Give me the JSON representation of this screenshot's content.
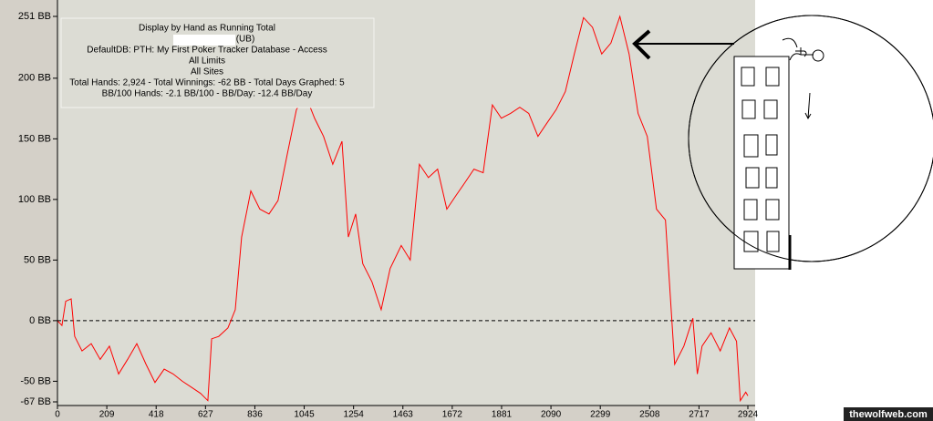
{
  "chart_data": {
    "type": "line",
    "info": [
      "Display by Hand as Running Total",
      "(UB)",
      "DefaultDB: PTH: My First Poker Tracker Database - Access",
      "All Limits",
      "All Sites",
      "Total Hands: 2,924 - Total Winnings: -62 BB - Total Days Graphed: 5",
      "BB/100 Hands: -2.1 BB/100 - BB/Day: -12.4 BB/Day"
    ],
    "x": [
      0,
      19,
      35,
      58,
      73,
      104,
      143,
      181,
      220,
      259,
      297,
      336,
      375,
      413,
      452,
      490,
      529,
      568,
      606,
      637,
      653,
      683,
      722,
      753,
      780,
      819,
      857,
      896,
      934,
      973,
      1012,
      1050,
      1089,
      1127,
      1166,
      1205,
      1232,
      1263,
      1293,
      1332,
      1371,
      1409,
      1456,
      1494,
      1533,
      1571,
      1610,
      1649,
      1687,
      1726,
      1764,
      1803,
      1842,
      1880,
      1919,
      1958,
      1996,
      2035,
      2073,
      2112,
      2151,
      2189,
      2228,
      2266,
      2305,
      2344,
      2382,
      2421,
      2459,
      2498,
      2537,
      2575,
      2614,
      2653,
      2691,
      2710,
      2730,
      2768,
      2807,
      2846,
      2876,
      2892,
      2915,
      2924
    ],
    "series": [
      {
        "color": "#ff0000",
        "values": [
          0,
          -4,
          16,
          18,
          -13,
          -25,
          -19,
          -32,
          -21,
          -44,
          -32,
          -19,
          -36,
          -51,
          -40,
          -44,
          -50,
          -55,
          -60,
          -66,
          -15,
          -13,
          -6,
          9,
          69,
          107,
          92,
          88,
          99,
          137,
          174,
          186,
          167,
          152,
          129,
          148,
          69,
          88,
          47,
          32,
          9,
          43,
          62,
          50,
          129,
          118,
          125,
          92,
          103,
          114,
          125,
          122,
          178,
          167,
          171,
          176,
          171,
          152,
          163,
          174,
          189,
          220,
          250,
          242,
          220,
          229,
          251,
          220,
          171,
          152,
          92,
          83,
          -36,
          -21,
          2,
          -44,
          -21,
          -10,
          -25,
          -6,
          -17,
          -66,
          -59,
          -62
        ]
      }
    ],
    "xlim": [
      0,
      2924
    ],
    "ylim": [
      -67,
      251
    ],
    "xticks": [
      0,
      209,
      418,
      627,
      836,
      1045,
      1254,
      1463,
      1672,
      1881,
      2090,
      2299,
      2508,
      2717,
      2924
    ],
    "yticks": [
      {
        "value": -67,
        "label": "-67 BB"
      },
      {
        "value": -50,
        "label": "-50 BB"
      },
      {
        "value": 0,
        "label": "0 BB"
      },
      {
        "value": 50,
        "label": "50 BB"
      },
      {
        "value": 100,
        "label": "100 BB"
      },
      {
        "value": 150,
        "label": "150 BB"
      },
      {
        "value": 200,
        "label": "200 BB"
      },
      {
        "value": 251,
        "label": "251 BB"
      }
    ]
  },
  "watermark": "thewolfweb.com"
}
